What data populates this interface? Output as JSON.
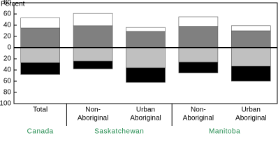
{
  "chart_data": {
    "type": "bar",
    "stacked": "diverging",
    "y_label": "Percent",
    "categories": [
      [
        "Total"
      ],
      [
        "Non-",
        "Aboriginal"
      ],
      [
        "Urban",
        "Aboriginal"
      ],
      [
        "Non-",
        "Aboriginal"
      ],
      [
        "Urban",
        "Aboriginal"
      ]
    ],
    "groups": [
      "Canada",
      "Saskatchewan",
      "Manitoba"
    ],
    "group_color": "#1f8a4c",
    "series": [
      {
        "color": "#808080",
        "values": [
          35,
          39,
          29,
          38,
          30
        ]
      },
      {
        "color": "#ffffff",
        "values": [
          18,
          22,
          7,
          17,
          9
        ]
      },
      {
        "color": "#c0c0c0",
        "values": [
          -27,
          -24,
          -36,
          -26,
          -33
        ]
      },
      {
        "color": "#000000",
        "values": [
          -21,
          -14,
          -26,
          -19,
          -27
        ]
      }
    ],
    "ylim": [
      -100,
      80
    ],
    "yticks": [
      {
        "value": -100,
        "label": "100"
      },
      {
        "value": -80,
        "label": "80"
      },
      {
        "value": -60,
        "label": "60"
      },
      {
        "value": -40,
        "label": "40"
      },
      {
        "value": -20,
        "label": "20"
      },
      0,
      20,
      40,
      60,
      80
    ]
  }
}
